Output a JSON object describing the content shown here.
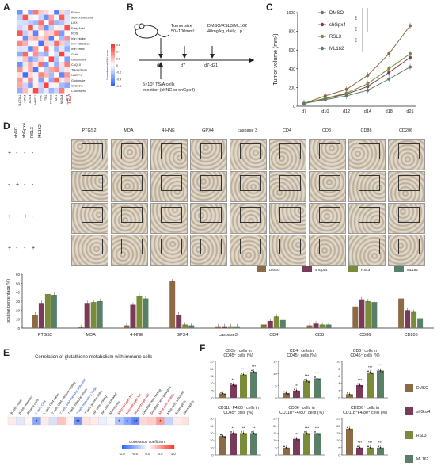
{
  "panel_labels": {
    "a": "A",
    "b": "B",
    "c": "C",
    "d": "D",
    "e": "E",
    "f": "F"
  },
  "panel_a": {
    "row_labels": [
      "Redox",
      "Membrane Lipid",
      "LOX",
      "Fatty Acid",
      "ROS",
      "Iron intake",
      "Iron utilization",
      "Iron efflux",
      "GHA",
      "Glutathione",
      "CoQ10",
      "Thioredoxin",
      "NADPH",
      "Glutamate",
      "Cysteine",
      "Cholesterol"
    ],
    "col_labels": [
      "SLC7A11",
      "GPX4",
      "ACSL4",
      "HMOX1",
      "TFRC",
      "FTH1",
      "PTGS2",
      "SAT1",
      "NCOA4",
      "CD44"
    ],
    "highlight_col": "TS/A",
    "colorbar_label": "Normalized ssGSEA score",
    "colorbar_ticks": [
      "0.6",
      "0.4",
      "0.2",
      "0",
      "-0.2",
      "-0.4",
      "-0.6"
    ]
  },
  "panel_b": {
    "top_labels": [
      "Tumor size\n50–100mm³",
      "DMSO/RSL3/ML162\n40mg/kg, daily, i.p"
    ],
    "timepoints": [
      "d0",
      "d7",
      "d7-d21"
    ],
    "bottom_label": "5×10⁵ TS/A cells\ninjection (shNC or shGpx4)"
  },
  "panel_c": {
    "chart_data": {
      "type": "line",
      "ylabel": "Tumor volume (mm³)",
      "categories": [
        "d7",
        "d10",
        "d12",
        "d14",
        "d18",
        "d21"
      ],
      "ylim": [
        0,
        1000
      ],
      "yticks": [
        0,
        200,
        400,
        600,
        800,
        1000
      ],
      "series": [
        {
          "name": "DMSO",
          "color": "#8b6a44",
          "values": [
            30,
            110,
            180,
            330,
            560,
            860
          ]
        },
        {
          "name": "shGpx4",
          "color": "#7a3a5a",
          "values": [
            30,
            80,
            130,
            210,
            360,
            520
          ]
        },
        {
          "name": "RSL3",
          "color": "#7a8c3a",
          "values": [
            30,
            85,
            140,
            240,
            400,
            560
          ]
        },
        {
          "name": "ML162",
          "color": "#5a7f68",
          "values": [
            30,
            70,
            110,
            170,
            290,
            420
          ]
        }
      ],
      "significance": [
        "***",
        "***",
        "***"
      ]
    }
  },
  "panel_d": {
    "group_headers": [
      "shNC",
      "shGpx4",
      "RSL3",
      "ML162"
    ],
    "row_signs": [
      [
        "+",
        "-",
        "-",
        "-"
      ],
      [
        "-",
        "+",
        "-",
        "-"
      ],
      [
        "+",
        "-",
        "+",
        "-"
      ],
      [
        "+",
        "-",
        "-",
        "+"
      ]
    ],
    "markers": [
      "PTGS2",
      "MDA",
      "4-HNE",
      "GPX4",
      "caspase 3",
      "CD4",
      "CD8",
      "CD86",
      "CD206"
    ],
    "legend": [
      {
        "name": "DMSO",
        "color": "#8b6a44"
      },
      {
        "name": "shGpx4",
        "color": "#7a3a5a"
      },
      {
        "name": "RSL3",
        "color": "#7a8c3a"
      },
      {
        "name": "ML162",
        "color": "#5a7f68"
      }
    ],
    "bar_chart": {
      "type": "bar",
      "ylabel": "positive percentage(%)",
      "ylim": [
        0,
        60
      ],
      "yticks": [
        0,
        10,
        20,
        30,
        40,
        50,
        60
      ],
      "categories": [
        "PTGS2",
        "MDA",
        "4-HNE",
        "GPX4",
        "caspase3",
        "CD4",
        "CD8",
        "CD86",
        "CD206"
      ],
      "series": [
        {
          "name": "DMSO",
          "values": [
            15,
            1,
            3,
            52,
            2,
            4,
            3,
            24,
            33
          ]
        },
        {
          "name": "shGpx4",
          "values": [
            28,
            28,
            26,
            15,
            2,
            8,
            5,
            32,
            20
          ]
        },
        {
          "name": "RSL3",
          "values": [
            38,
            29,
            36,
            4,
            2,
            13,
            4,
            30,
            18
          ]
        },
        {
          "name": "ML162",
          "values": [
            37,
            30,
            33,
            3,
            2,
            9,
            4,
            29,
            11
          ]
        }
      ]
    }
  },
  "panel_e": {
    "title": "Correlation of glutathione metabolism with immune cells",
    "columns": [
      "B cells naive",
      "B cells memory",
      "Plasma cells",
      "T cells CD8",
      "T cells CD4 naive",
      "T cells CD4 memory resting",
      "T cells CD4 memory activated",
      "T cells follicular helper",
      "T cells regulatory Tregs",
      "T cells gamma delta",
      "NK cells resting",
      "NK cells activated",
      "Monocytes",
      "Macrophages M0",
      "Macrophages M1",
      "Macrophages M2",
      "Dendritic cells resting",
      "Dendritic cells activated",
      "Mast cells resting",
      "Mast cells activated",
      "Eosinophils",
      "Neutrophils"
    ],
    "values": [
      0.1,
      -0.15,
      0.05,
      -0.6,
      0.1,
      -0.2,
      0.3,
      0.05,
      -0.7,
      0.15,
      0.1,
      -0.1,
      -0.05,
      -0.4,
      -0.6,
      -0.8,
      0.2,
      0.25,
      0.5,
      -0.3,
      0.1,
      0.15
    ],
    "stars": [
      "",
      "",
      "",
      "*",
      "",
      "",
      "",
      "",
      "**",
      "",
      "",
      "",
      "",
      "*",
      "*",
      "**",
      "",
      "",
      "*",
      "",
      "",
      ""
    ],
    "legend_title": "Correlation coefficient",
    "legend_ticks": [
      "-1.0",
      "-0.5",
      "0.0",
      "0.5",
      "1.0"
    ]
  },
  "panel_f": {
    "charts": [
      {
        "title": "CD3e⁺ cells in\nCD45⁺ cells (%)",
        "ylim": [
          0,
          25
        ],
        "yticks": [
          0,
          5,
          10,
          15,
          20,
          25
        ],
        "values": [
          3,
          9,
          16,
          18
        ],
        "stars": [
          "",
          "**",
          "***",
          "***"
        ]
      },
      {
        "title": "CD4⁺ cells in\nCD45⁺ cells (%)",
        "ylim": [
          0,
          15
        ],
        "yticks": [
          0,
          5,
          10,
          15
        ],
        "values": [
          2,
          3,
          7,
          8
        ],
        "stars": [
          "",
          "***",
          "***",
          "***"
        ]
      },
      {
        "title": "CD8⁺ cells in\nCD45⁺ cells (%)",
        "ylim": [
          0,
          10
        ],
        "yticks": [
          0,
          2,
          4,
          6,
          8,
          10
        ],
        "values": [
          1,
          3.5,
          7,
          7.5
        ],
        "stars": [
          "",
          "***",
          "***",
          "***"
        ]
      },
      {
        "title": "CD11b⁺F4/80⁺ cells in\nCD45⁺ cells (%)",
        "ylim": [
          0,
          50
        ],
        "yticks": [
          0,
          10,
          20,
          30,
          40,
          50
        ],
        "values": [
          26,
          30,
          30,
          30
        ],
        "stars": [
          "",
          "**",
          "**",
          "**"
        ]
      },
      {
        "title": "CD86⁺ cells in\nCD11b⁺F4/80⁺ cells (%)",
        "ylim": [
          0,
          25
        ],
        "yticks": [
          0,
          5,
          10,
          15,
          20,
          25
        ],
        "values": [
          5,
          11,
          15,
          15
        ],
        "stars": [
          "",
          "***",
          "***",
          "***"
        ]
      },
      {
        "title": "CD206⁺ cells in\nCD11b⁺F4/80⁺ cells (%)",
        "ylim": [
          0,
          25
        ],
        "yticks": [
          0,
          5,
          10,
          15,
          20,
          25
        ],
        "values": [
          18,
          5,
          5,
          5
        ],
        "stars": [
          "",
          "***",
          "***",
          "***"
        ]
      }
    ],
    "legend": [
      {
        "name": "DMSO",
        "color": "#8b6a44"
      },
      {
        "name": "shGpx4",
        "color": "#7a3a5a"
      },
      {
        "name": "RSL3",
        "color": "#7a8c3a"
      },
      {
        "name": "ML162",
        "color": "#5a7f68"
      }
    ]
  }
}
